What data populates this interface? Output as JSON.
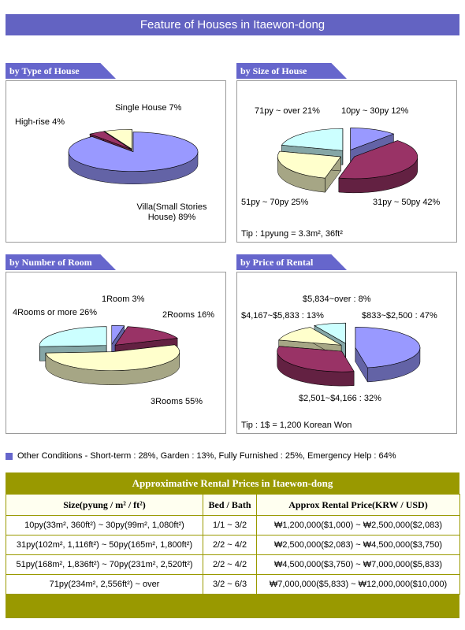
{
  "header": {
    "title": "Feature of Houses in Itaewon-dong"
  },
  "chart_data": [
    {
      "type": "pie",
      "title": "by Type of House",
      "categories": [
        "Villa(Small Stories House)",
        "High-rise",
        "Single House"
      ],
      "values": [
        89,
        4,
        7
      ],
      "value_labels": [
        "89%",
        "4%",
        "7%"
      ],
      "colors": [
        "#9999ff",
        "#993366",
        "#ffffcc"
      ]
    },
    {
      "type": "pie",
      "title": "by Size of House",
      "categories": [
        "10py ~ 30py",
        "31py ~ 50py",
        "51py ~ 70py",
        "71py ~ over"
      ],
      "values": [
        12,
        42,
        25,
        21
      ],
      "value_labels": [
        "12%",
        "42%",
        "25%",
        "21%"
      ],
      "colors": [
        "#9999ff",
        "#993366",
        "#ffffcc",
        "#ccffff"
      ],
      "note": "Tip : 1pyung = 3.3m², 36ft²"
    },
    {
      "type": "pie",
      "title": "by Number of Room",
      "categories": [
        "1Room",
        "2Rooms",
        "3Rooms",
        "4Rooms or more"
      ],
      "values": [
        3,
        16,
        55,
        26
      ],
      "value_labels": [
        "3%",
        "16%",
        "55%",
        "26%"
      ],
      "colors": [
        "#9999ff",
        "#993366",
        "#ffffcc",
        "#ccffff"
      ]
    },
    {
      "type": "pie",
      "title": "by Price of Rental",
      "categories": [
        "$833~$2,500",
        "$2,501~$4,166",
        "$4,167~$5,833",
        "$5,834~over"
      ],
      "values": [
        47,
        32,
        13,
        8
      ],
      "value_labels": [
        ": 47%",
        ": 32%",
        ": 13%",
        ": 8%"
      ],
      "colors": [
        "#9999ff",
        "#993366",
        "#ffffcc",
        "#ccffff"
      ],
      "note": "Tip : 1$ = 1,200 Korean Won"
    }
  ],
  "note": "Other Conditions - Short-term : 28%, Garden : 13%, Fully Furnished : 25%, Emergency Help : 64%",
  "table": {
    "title": "Approximative Rental Prices in Itaewon-dong",
    "columns": [
      "Size(pyung / m² / ft²)",
      "Bed / Bath",
      "Approx Rental Price(KRW / USD)"
    ],
    "rows": [
      [
        "10py(33m², 360ft²) ~ 30py(99m², 1,080ft²)",
        "1/1 ~ 3/2",
        "₩1,200,000($1,000) ~ ₩2,500,000($2,083)"
      ],
      [
        "31py(102m², 1,116ft²) ~ 50py(165m², 1,800ft²)",
        "2/2 ~ 4/2",
        "₩2,500,000($2,083) ~ ₩4,500,000($3,750)"
      ],
      [
        "51py(168m², 1,836ft²) ~ 70py(231m², 2,520ft²)",
        "2/2 ~ 4/2",
        "₩4,500,000($3,750) ~ ₩7,000,000($5,833)"
      ],
      [
        "71py(234m², 2,556ft²) ~ over",
        "3/2 ~ 6/3",
        "₩7,000,000($5,833) ~ ₩12,000,000($10,000)"
      ]
    ]
  }
}
